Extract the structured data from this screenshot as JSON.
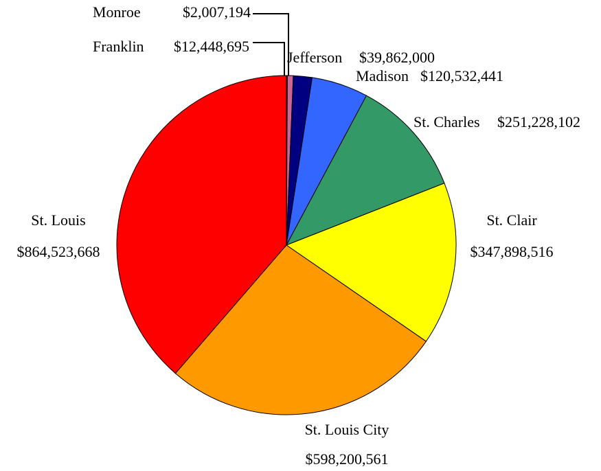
{
  "chart_data": {
    "type": "pie",
    "categories": [
      "Monroe",
      "Franklin",
      "Jefferson",
      "Madison",
      "St. Charles",
      "St. Clair",
      "St. Louis City",
      "St. Louis"
    ],
    "values": [
      2007194,
      12448695,
      39862000,
      120532441,
      251228102,
      347898516,
      598200561,
      864523668
    ],
    "value_labels": [
      "$2,007,194",
      "$12,448,695",
      "$39,862,000",
      "$120,532,441",
      "$251,228,102",
      "$347,898,516",
      "$598,200,561",
      "$864,523,668"
    ],
    "colors": [
      "#993366",
      "#cc6699",
      "#000080",
      "#3366ff",
      "#339966",
      "#ffff00",
      "#ff9900",
      "#ff0000"
    ]
  }
}
